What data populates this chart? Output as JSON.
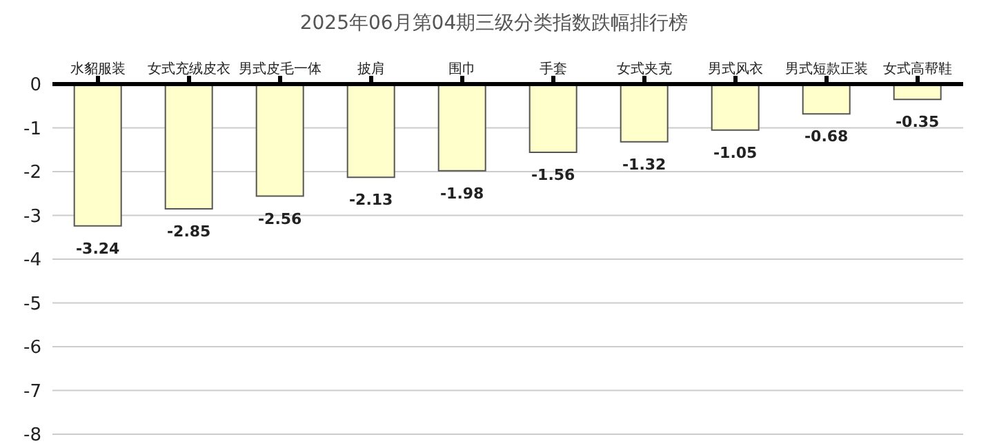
{
  "chart_data": {
    "type": "bar",
    "title": "2025年06月第04期三级分类指数跌幅排行榜",
    "categories": [
      "水貂服装",
      "女式充绒皮衣",
      "男式皮毛一体",
      "披肩",
      "围巾",
      "手套",
      "女式夹克",
      "男式风衣",
      "男式短款正装",
      "女式高帮鞋"
    ],
    "values": [
      -3.24,
      -2.85,
      -2.56,
      -2.13,
      -1.98,
      -1.56,
      -1.32,
      -1.05,
      -0.68,
      -0.35
    ],
    "color": "#ffffcc",
    "ylim": [
      -8,
      0
    ],
    "yticks": [
      0,
      -1,
      -2,
      -3,
      -4,
      -5,
      -6,
      -7,
      -8
    ],
    "grid": "y",
    "data_labels": true
  }
}
